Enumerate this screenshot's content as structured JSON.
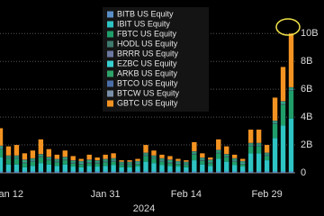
{
  "chart_data": {
    "type": "stacked_bar",
    "categories": [
      null,
      "Jan 12",
      null,
      null,
      null,
      null,
      null,
      null,
      null,
      null,
      null,
      null,
      null,
      "Jan 31",
      null,
      null,
      null,
      null,
      null,
      null,
      null,
      null,
      null,
      "Feb 14",
      null,
      null,
      null,
      null,
      null,
      null,
      null,
      null,
      null,
      "Feb 29",
      null,
      null,
      null
    ],
    "x_group_label": "2024",
    "series": [
      {
        "name": "BITB US Equity",
        "color": "#5b8fc7",
        "values": [
          0.1,
          0.1,
          0.1,
          0.1,
          0.1,
          0.1,
          0.1,
          0.1,
          0.1,
          0.1,
          0.1,
          0.1,
          0.1,
          0.1,
          0.1,
          0.1,
          0.1,
          0.1,
          0.1,
          0.1,
          0.1,
          0.1,
          0.1,
          0.1,
          0.1,
          0.1,
          0.1,
          0.1,
          0.1,
          0.1,
          0.1,
          0.1,
          0.1,
          0.1,
          0.1,
          0.1,
          0.1
        ]
      },
      {
        "name": "IBIT US Equity",
        "color": "#2ec4c4",
        "values": [
          1.0,
          0.5,
          0.5,
          0.3,
          0.4,
          0.6,
          0.5,
          0.4,
          0.5,
          0.35,
          0.3,
          0.4,
          0.35,
          0.4,
          0.45,
          0.3,
          0.3,
          0.35,
          0.7,
          0.6,
          0.45,
          0.4,
          0.35,
          0.3,
          0.8,
          0.5,
          0.4,
          0.9,
          0.7,
          0.45,
          0.35,
          1.3,
          1.3,
          0.8,
          2.4,
          3.3,
          3.8
        ]
      },
      {
        "name": "FBTC US Equity",
        "color": "#1f9e6a",
        "values": [
          0.6,
          0.4,
          0.4,
          0.3,
          0.3,
          0.4,
          0.3,
          0.25,
          0.3,
          0.2,
          0.2,
          0.2,
          0.2,
          0.25,
          0.25,
          0.15,
          0.15,
          0.15,
          0.4,
          0.3,
          0.25,
          0.2,
          0.15,
          0.15,
          0.4,
          0.25,
          0.2,
          0.4,
          0.3,
          0.25,
          0.15,
          0.5,
          0.5,
          0.3,
          1.0,
          1.5,
          2.0
        ]
      },
      {
        "name": "HODL US Equity",
        "color": "#3e7a6e",
        "values": [
          0.05,
          0.05,
          0.05,
          0.05,
          0.05,
          0.05,
          0.05,
          0.05,
          0.05,
          0.05,
          0.05,
          0.05,
          0.05,
          0.05,
          0.05,
          0.05,
          0.05,
          0.05,
          0.05,
          0.05,
          0.05,
          0.05,
          0.05,
          0.05,
          0.05,
          0.05,
          0.05,
          0.05,
          0.05,
          0.05,
          0.05,
          0.05,
          0.05,
          0.05,
          0.05,
          0.05,
          0.05
        ]
      },
      {
        "name": "BRRR US Equity",
        "color": "#6b78a0",
        "values": [
          0.03,
          0.03,
          0.03,
          0.03,
          0.03,
          0.03,
          0.03,
          0.03,
          0.03,
          0.03,
          0.03,
          0.03,
          0.03,
          0.03,
          0.03,
          0.03,
          0.03,
          0.03,
          0.03,
          0.03,
          0.03,
          0.03,
          0.03,
          0.03,
          0.03,
          0.03,
          0.03,
          0.03,
          0.03,
          0.03,
          0.03,
          0.03,
          0.03,
          0.03,
          0.03,
          0.03,
          0.03
        ]
      },
      {
        "name": "EZBC US Equity",
        "color": "#38d0d0",
        "values": [
          0.03,
          0.03,
          0.03,
          0.03,
          0.03,
          0.03,
          0.03,
          0.03,
          0.03,
          0.03,
          0.03,
          0.03,
          0.03,
          0.03,
          0.03,
          0.03,
          0.03,
          0.03,
          0.03,
          0.03,
          0.03,
          0.03,
          0.03,
          0.03,
          0.03,
          0.03,
          0.03,
          0.03,
          0.03,
          0.03,
          0.03,
          0.03,
          0.03,
          0.03,
          0.03,
          0.03,
          0.03
        ]
      },
      {
        "name": "ARKB US Equity",
        "color": "#2ea36a",
        "values": [
          0.1,
          0.1,
          0.1,
          0.1,
          0.1,
          0.1,
          0.1,
          0.1,
          0.1,
          0.1,
          0.1,
          0.1,
          0.1,
          0.1,
          0.1,
          0.1,
          0.1,
          0.1,
          0.1,
          0.1,
          0.1,
          0.1,
          0.1,
          0.1,
          0.1,
          0.1,
          0.1,
          0.1,
          0.1,
          0.1,
          0.1,
          0.1,
          0.1,
          0.1,
          0.1,
          0.1,
          0.1
        ]
      },
      {
        "name": "BTCO US Equity",
        "color": "#4b6ea8",
        "values": [
          0.03,
          0.03,
          0.03,
          0.03,
          0.03,
          0.03,
          0.03,
          0.03,
          0.03,
          0.03,
          0.03,
          0.03,
          0.03,
          0.03,
          0.03,
          0.03,
          0.03,
          0.03,
          0.03,
          0.03,
          0.03,
          0.03,
          0.03,
          0.03,
          0.03,
          0.03,
          0.03,
          0.03,
          0.03,
          0.03,
          0.03,
          0.03,
          0.03,
          0.03,
          0.03,
          0.03,
          0.03
        ]
      },
      {
        "name": "BTCW US Equity",
        "color": "#7a8fa8",
        "values": [
          0.01,
          0.01,
          0.01,
          0.01,
          0.01,
          0.01,
          0.01,
          0.01,
          0.01,
          0.01,
          0.01,
          0.01,
          0.01,
          0.01,
          0.01,
          0.01,
          0.01,
          0.01,
          0.01,
          0.01,
          0.01,
          0.01,
          0.01,
          0.01,
          0.01,
          0.01,
          0.01,
          0.01,
          0.01,
          0.01,
          0.01,
          0.01,
          0.01,
          0.01,
          0.01,
          0.01,
          0.01
        ]
      },
      {
        "name": "GBTC US Equity",
        "color": "#f39321",
        "values": [
          1.25,
          0.65,
          0.75,
          0.45,
          0.55,
          1.05,
          0.55,
          0.3,
          0.45,
          0.3,
          0.15,
          0.35,
          0.2,
          0.3,
          0.35,
          0.1,
          0.1,
          0.15,
          0.55,
          0.35,
          0.25,
          0.25,
          0.15,
          0.1,
          0.65,
          0.3,
          0.15,
          0.75,
          0.55,
          0.25,
          0.15,
          0.95,
          0.95,
          0.55,
          1.65,
          2.45,
          3.85
        ]
      }
    ],
    "ylim": [
      0,
      10.6
    ],
    "yticks": [
      0,
      {
        "value": 2,
        "label": "2B"
      },
      {
        "value": 4,
        "label": "4B"
      },
      {
        "value": 6,
        "label": "6B"
      },
      {
        "value": 8,
        "label": "8B"
      },
      {
        "value": 10,
        "label": "10B"
      }
    ],
    "grid": true
  }
}
